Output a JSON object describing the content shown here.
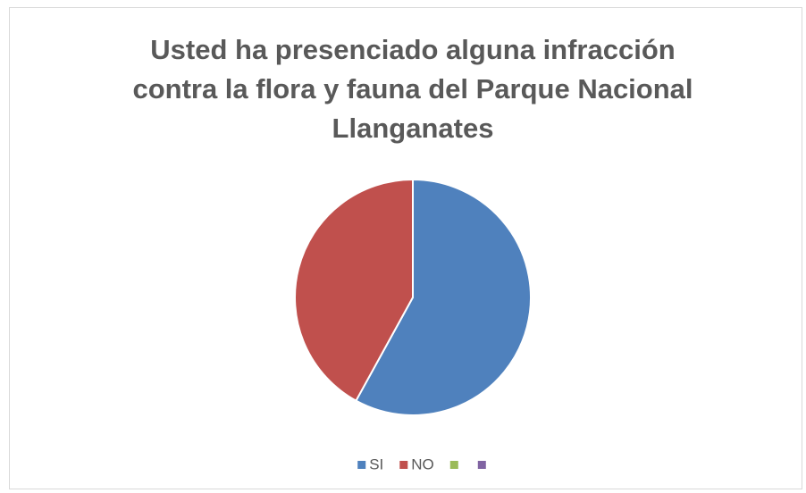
{
  "chart_data": {
    "type": "pie",
    "title": "Usted ha presenciado alguna infracción\ncontra la flora y fauna del Parque Nacional\nLlanganates",
    "categories": [
      "SI",
      "NO",
      null,
      null
    ],
    "values": [
      58,
      42,
      0,
      0
    ],
    "colors": [
      "#4f81bd",
      "#c0504d",
      "#9bbb59",
      "#8064a2"
    ],
    "legend": "bottom"
  }
}
